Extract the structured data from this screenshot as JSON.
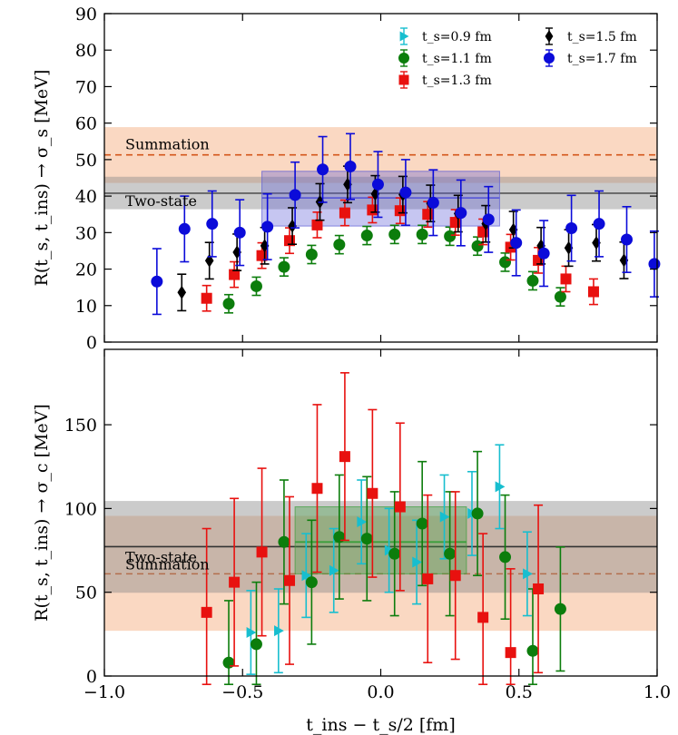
{
  "chart_data": [
    {
      "type": "scatter",
      "panel": "top",
      "ylabel": "R(t_s, t_ins) → σ_s [MeV]",
      "ylim": [
        0,
        90
      ],
      "yticks": [
        "0",
        "10",
        "20",
        "30",
        "40",
        "50",
        "60",
        "70",
        "80",
        "90"
      ],
      "xlim": [
        -1.0,
        1.0
      ],
      "bands": [
        {
          "name": "Summation",
          "label": "Summation",
          "center": 51.3,
          "low": 43.6,
          "high": 58.9,
          "color": "#f5b88f",
          "line_color": "#d4561b",
          "line_style": "dashed"
        },
        {
          "name": "Two-state",
          "label": "Two-state",
          "center": 40.8,
          "low": 36.4,
          "high": 45.3,
          "color": "#8c8c8c",
          "line_color": "#555555",
          "line_style": "solid"
        }
      ],
      "fit_box": {
        "x_from": -0.43,
        "x_to": 0.43,
        "center": 39.5,
        "low": 31.8,
        "high": 46.8,
        "color": "#5b5bd6"
      },
      "series": [
        {
          "name": "t_s=0.9 fm",
          "marker": "triangle-right",
          "color": "#17becf",
          "points": []
        },
        {
          "name": "t_s=1.1 fm",
          "marker": "circle",
          "color": "#0c7d0c",
          "points": [
            {
              "x": -0.55,
              "y": 10.5,
              "err": 2.5
            },
            {
              "x": -0.45,
              "y": 15.3,
              "err": 2.5
            },
            {
              "x": -0.35,
              "y": 20.6,
              "err": 2.5
            },
            {
              "x": -0.25,
              "y": 24.0,
              "err": 2.5
            },
            {
              "x": -0.15,
              "y": 26.7,
              "err": 2.5
            },
            {
              "x": -0.05,
              "y": 29.2,
              "err": 2.5
            },
            {
              "x": 0.05,
              "y": 29.5,
              "err": 2.5
            },
            {
              "x": 0.15,
              "y": 29.5,
              "err": 2.5
            },
            {
              "x": 0.25,
              "y": 29.0,
              "err": 2.5
            },
            {
              "x": 0.35,
              "y": 26.3,
              "err": 2.5
            },
            {
              "x": 0.45,
              "y": 21.9,
              "err": 2.5
            },
            {
              "x": 0.55,
              "y": 16.8,
              "err": 2.5
            },
            {
              "x": 0.65,
              "y": 12.4,
              "err": 2.5
            }
          ]
        },
        {
          "name": "t_s=1.3 fm",
          "marker": "square",
          "color": "#e8110f",
          "points": [
            {
              "x": -0.63,
              "y": 12.0,
              "err": 3.5
            },
            {
              "x": -0.53,
              "y": 18.5,
              "err": 3.5
            },
            {
              "x": -0.43,
              "y": 23.7,
              "err": 3.5
            },
            {
              "x": -0.33,
              "y": 27.8,
              "err": 3.5
            },
            {
              "x": -0.23,
              "y": 32.1,
              "err": 3.5
            },
            {
              "x": -0.13,
              "y": 35.4,
              "err": 3.5
            },
            {
              "x": -0.03,
              "y": 36.2,
              "err": 3.5
            },
            {
              "x": 0.07,
              "y": 36.0,
              "err": 3.5
            },
            {
              "x": 0.17,
              "y": 35.0,
              "err": 3.5
            },
            {
              "x": 0.27,
              "y": 32.8,
              "err": 3.5
            },
            {
              "x": 0.37,
              "y": 30.2,
              "err": 3.5
            },
            {
              "x": 0.47,
              "y": 26.0,
              "err": 3.5
            },
            {
              "x": 0.57,
              "y": 22.4,
              "err": 3.5
            },
            {
              "x": 0.67,
              "y": 17.3,
              "err": 3.5
            },
            {
              "x": 0.77,
              "y": 13.8,
              "err": 3.5
            }
          ]
        },
        {
          "name": "t_s=1.5 fm",
          "marker": "diamond",
          "color": "#000000",
          "points": [
            {
              "x": -0.72,
              "y": 13.6,
              "err": 5.0
            },
            {
              "x": -0.62,
              "y": 22.3,
              "err": 5.0
            },
            {
              "x": -0.52,
              "y": 24.6,
              "err": 5.0
            },
            {
              "x": -0.42,
              "y": 26.4,
              "err": 5.0
            },
            {
              "x": -0.32,
              "y": 31.8,
              "err": 5.0
            },
            {
              "x": -0.22,
              "y": 38.4,
              "err": 5.0
            },
            {
              "x": -0.12,
              "y": 43.2,
              "err": 5.0
            },
            {
              "x": -0.02,
              "y": 40.6,
              "err": 5.0
            },
            {
              "x": 0.08,
              "y": 40.4,
              "err": 5.0
            },
            {
              "x": 0.18,
              "y": 38.0,
              "err": 5.0
            },
            {
              "x": 0.28,
              "y": 35.2,
              "err": 5.0
            },
            {
              "x": 0.38,
              "y": 32.4,
              "err": 5.0
            },
            {
              "x": 0.48,
              "y": 30.8,
              "err": 5.0
            },
            {
              "x": 0.58,
              "y": 26.4,
              "err": 5.0
            },
            {
              "x": 0.68,
              "y": 25.8,
              "err": 5.0
            },
            {
              "x": 0.78,
              "y": 27.2,
              "err": 5.0
            },
            {
              "x": 0.88,
              "y": 22.4,
              "err": 5.0
            }
          ]
        },
        {
          "name": "t_s=1.7 fm",
          "marker": "circle",
          "color": "#0b0bd9",
          "points": [
            {
              "x": -0.81,
              "y": 16.6,
              "err": 9.0
            },
            {
              "x": -0.71,
              "y": 31.0,
              "err": 9.0
            },
            {
              "x": -0.61,
              "y": 32.4,
              "err": 9.0
            },
            {
              "x": -0.51,
              "y": 30.0,
              "err": 9.0
            },
            {
              "x": -0.41,
              "y": 31.6,
              "err": 9.0
            },
            {
              "x": -0.31,
              "y": 40.3,
              "err": 9.0
            },
            {
              "x": -0.21,
              "y": 47.3,
              "err": 9.0
            },
            {
              "x": -0.11,
              "y": 48.1,
              "err": 9.0
            },
            {
              "x": -0.01,
              "y": 43.2,
              "err": 9.0
            },
            {
              "x": 0.09,
              "y": 41.0,
              "err": 9.0
            },
            {
              "x": 0.19,
              "y": 38.2,
              "err": 9.0
            },
            {
              "x": 0.29,
              "y": 35.4,
              "err": 9.0
            },
            {
              "x": 0.39,
              "y": 33.6,
              "err": 9.0
            },
            {
              "x": 0.49,
              "y": 27.2,
              "err": 9.0
            },
            {
              "x": 0.59,
              "y": 24.3,
              "err": 9.0
            },
            {
              "x": 0.69,
              "y": 31.2,
              "err": 9.0
            },
            {
              "x": 0.79,
              "y": 32.4,
              "err": 9.0
            },
            {
              "x": 0.89,
              "y": 28.1,
              "err": 9.0
            },
            {
              "x": 0.99,
              "y": 21.4,
              "err": 9.0
            }
          ]
        }
      ],
      "legend": {
        "placement": "top-right",
        "entries": [
          {
            "label": "t_s=0.9 fm",
            "marker": "triangle-right",
            "color": "#17becf"
          },
          {
            "label": "t_s=1.5 fm",
            "marker": "diamond",
            "color": "#000000"
          },
          {
            "label": "t_s=1.1 fm",
            "marker": "circle",
            "color": "#0c7d0c"
          },
          {
            "label": "t_s=1.7 fm",
            "marker": "circle",
            "color": "#0b0bd9"
          },
          {
            "label": "t_s=1.3 fm",
            "marker": "square",
            "color": "#e8110f"
          }
        ]
      }
    },
    {
      "type": "scatter",
      "panel": "bottom",
      "ylabel": "R(t_s, t_ins) → σ_c [MeV]",
      "xlabel": "t_ins − t_s/2 [fm]",
      "ylim": [
        0,
        195
      ],
      "yticks": [
        "0",
        "50",
        "100",
        "150"
      ],
      "xlim": [
        -1.0,
        1.0
      ],
      "xticks": [
        "−1.0",
        "−0.5",
        "0.0",
        "0.5",
        "1.0"
      ],
      "bands": [
        {
          "name": "Summation",
          "label": "Summation",
          "center": 61.0,
          "low": 27.0,
          "high": 95.6,
          "color": "#f5b88f",
          "line_color": "#d4561b",
          "line_style": "dashed"
        },
        {
          "name": "Two-state",
          "label": "Two-state",
          "center": 77.2,
          "low": 49.7,
          "high": 104.5,
          "color": "#8c8c8c",
          "line_color": "#333333",
          "line_style": "solid"
        }
      ],
      "fit_box": {
        "x_from": -0.31,
        "x_to": 0.31,
        "center": 80.0,
        "low": 61.0,
        "high": 101.0,
        "color": "#3c9e3c"
      },
      "series": [
        {
          "name": "t_s=0.9 fm",
          "marker": "triangle-right",
          "color": "#17becf",
          "points": [
            {
              "x": -0.47,
              "y": 26.0,
              "err": 25
            },
            {
              "x": -0.37,
              "y": 27.0,
              "err": 25
            },
            {
              "x": -0.27,
              "y": 60.0,
              "err": 25
            },
            {
              "x": -0.17,
              "y": 63.0,
              "err": 25
            },
            {
              "x": -0.07,
              "y": 92.0,
              "err": 25
            },
            {
              "x": 0.03,
              "y": 75.0,
              "err": 25
            },
            {
              "x": 0.13,
              "y": 68.0,
              "err": 25
            },
            {
              "x": 0.23,
              "y": 95.0,
              "err": 25
            },
            {
              "x": 0.33,
              "y": 97.0,
              "err": 25
            },
            {
              "x": 0.43,
              "y": 113.0,
              "err": 25
            },
            {
              "x": 0.53,
              "y": 61.0,
              "err": 25
            }
          ]
        },
        {
          "name": "t_s=1.1 fm",
          "marker": "circle",
          "color": "#0c7d0c",
          "points": [
            {
              "x": -0.55,
              "y": 8.0,
              "err": 37
            },
            {
              "x": -0.45,
              "y": 19.0,
              "err": 37
            },
            {
              "x": -0.35,
              "y": 80.0,
              "err": 37
            },
            {
              "x": -0.25,
              "y": 56.0,
              "err": 37
            },
            {
              "x": -0.15,
              "y": 83.0,
              "err": 37
            },
            {
              "x": -0.05,
              "y": 82.0,
              "err": 37
            },
            {
              "x": 0.05,
              "y": 73.0,
              "err": 37
            },
            {
              "x": 0.15,
              "y": 91.0,
              "err": 37
            },
            {
              "x": 0.25,
              "y": 73.0,
              "err": 37
            },
            {
              "x": 0.35,
              "y": 97.0,
              "err": 37
            },
            {
              "x": 0.45,
              "y": 71.0,
              "err": 37
            },
            {
              "x": 0.55,
              "y": 15.0,
              "err": 37
            },
            {
              "x": 0.65,
              "y": 40.0,
              "err": 37
            }
          ]
        },
        {
          "name": "t_s=1.3 fm",
          "marker": "square",
          "color": "#e8110f",
          "points": [
            {
              "x": -0.63,
              "y": 38.0,
              "err": 50
            },
            {
              "x": -0.53,
              "y": 56.0,
              "err": 50
            },
            {
              "x": -0.43,
              "y": 74.0,
              "err": 50
            },
            {
              "x": -0.33,
              "y": 57.0,
              "err": 50
            },
            {
              "x": -0.23,
              "y": 112.0,
              "err": 50
            },
            {
              "x": -0.13,
              "y": 131.0,
              "err": 50
            },
            {
              "x": -0.03,
              "y": 109.0,
              "err": 50
            },
            {
              "x": 0.07,
              "y": 101.0,
              "err": 50
            },
            {
              "x": 0.17,
              "y": 58.0,
              "err": 50
            },
            {
              "x": 0.27,
              "y": 60.0,
              "err": 50
            },
            {
              "x": 0.37,
              "y": 35.0,
              "err": 50
            },
            {
              "x": 0.47,
              "y": 14.0,
              "err": 50
            },
            {
              "x": 0.57,
              "y": 52.0,
              "err": 50
            }
          ]
        }
      ]
    }
  ]
}
